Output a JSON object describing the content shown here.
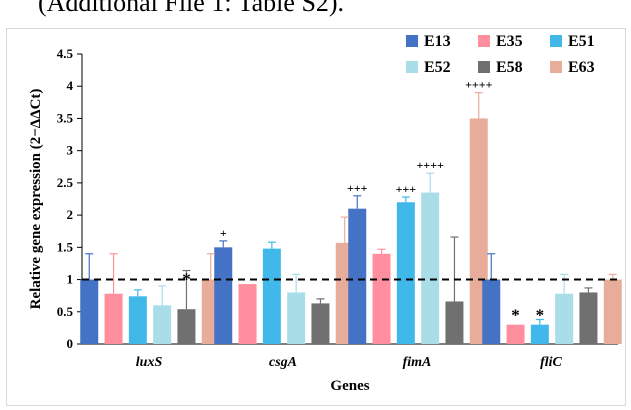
{
  "caption_fragment": "(Additional File 1: Table S2).",
  "chart_data": {
    "type": "bar",
    "title": "",
    "xlabel": "Genes",
    "ylabel": "Relative gene expression (2−ΔΔCt)",
    "ylim": [
      0,
      4.5
    ],
    "yticks": [
      "0",
      "0.5",
      "1",
      "1.5",
      "2",
      "2.5",
      "3",
      "3.5",
      "4",
      "4.5"
    ],
    "categories": [
      "luxS",
      "csgA",
      "fimA",
      "fliC"
    ],
    "reference_line": 1,
    "grid": false,
    "legend_position": "top-right",
    "series": [
      {
        "name": "E13",
        "color": "#4472c4",
        "values": [
          1.0,
          1.5,
          2.1,
          1.0
        ],
        "errors": [
          0.4,
          0.1,
          0.2,
          0.4
        ],
        "annotations": [
          "",
          "+",
          "+++",
          ""
        ]
      },
      {
        "name": "E35",
        "color": "#ff8f9e",
        "values": [
          0.78,
          0.93,
          1.4,
          0.3
        ],
        "errors": [
          0.62,
          0.0,
          0.07,
          0.0
        ],
        "annotations": [
          "",
          "",
          "",
          "*"
        ]
      },
      {
        "name": "E51",
        "color": "#41b8ea",
        "values": [
          0.74,
          1.48,
          2.2,
          0.3
        ],
        "errors": [
          0.1,
          0.1,
          0.08,
          0.08
        ],
        "annotations": [
          "",
          "",
          "+++",
          "*"
        ]
      },
      {
        "name": "E52",
        "color": "#a9dde8",
        "values": [
          0.6,
          0.8,
          2.35,
          0.78
        ],
        "errors": [
          0.3,
          0.28,
          0.3,
          0.3
        ],
        "annotations": [
          "",
          "",
          "++++",
          ""
        ]
      },
      {
        "name": "E58",
        "color": "#707070",
        "values": [
          0.54,
          0.63,
          0.66,
          0.8
        ],
        "errors": [
          0.6,
          0.07,
          1.0,
          0.07
        ],
        "annotations": [
          "*",
          "",
          "",
          ""
        ]
      },
      {
        "name": "E63",
        "color": "#e8ac9a",
        "values": [
          1.0,
          1.57,
          3.5,
          1.0
        ],
        "errors": [
          0.4,
          0.4,
          0.4,
          0.08
        ],
        "annotations": [
          "",
          "",
          "++++",
          ""
        ]
      }
    ]
  }
}
